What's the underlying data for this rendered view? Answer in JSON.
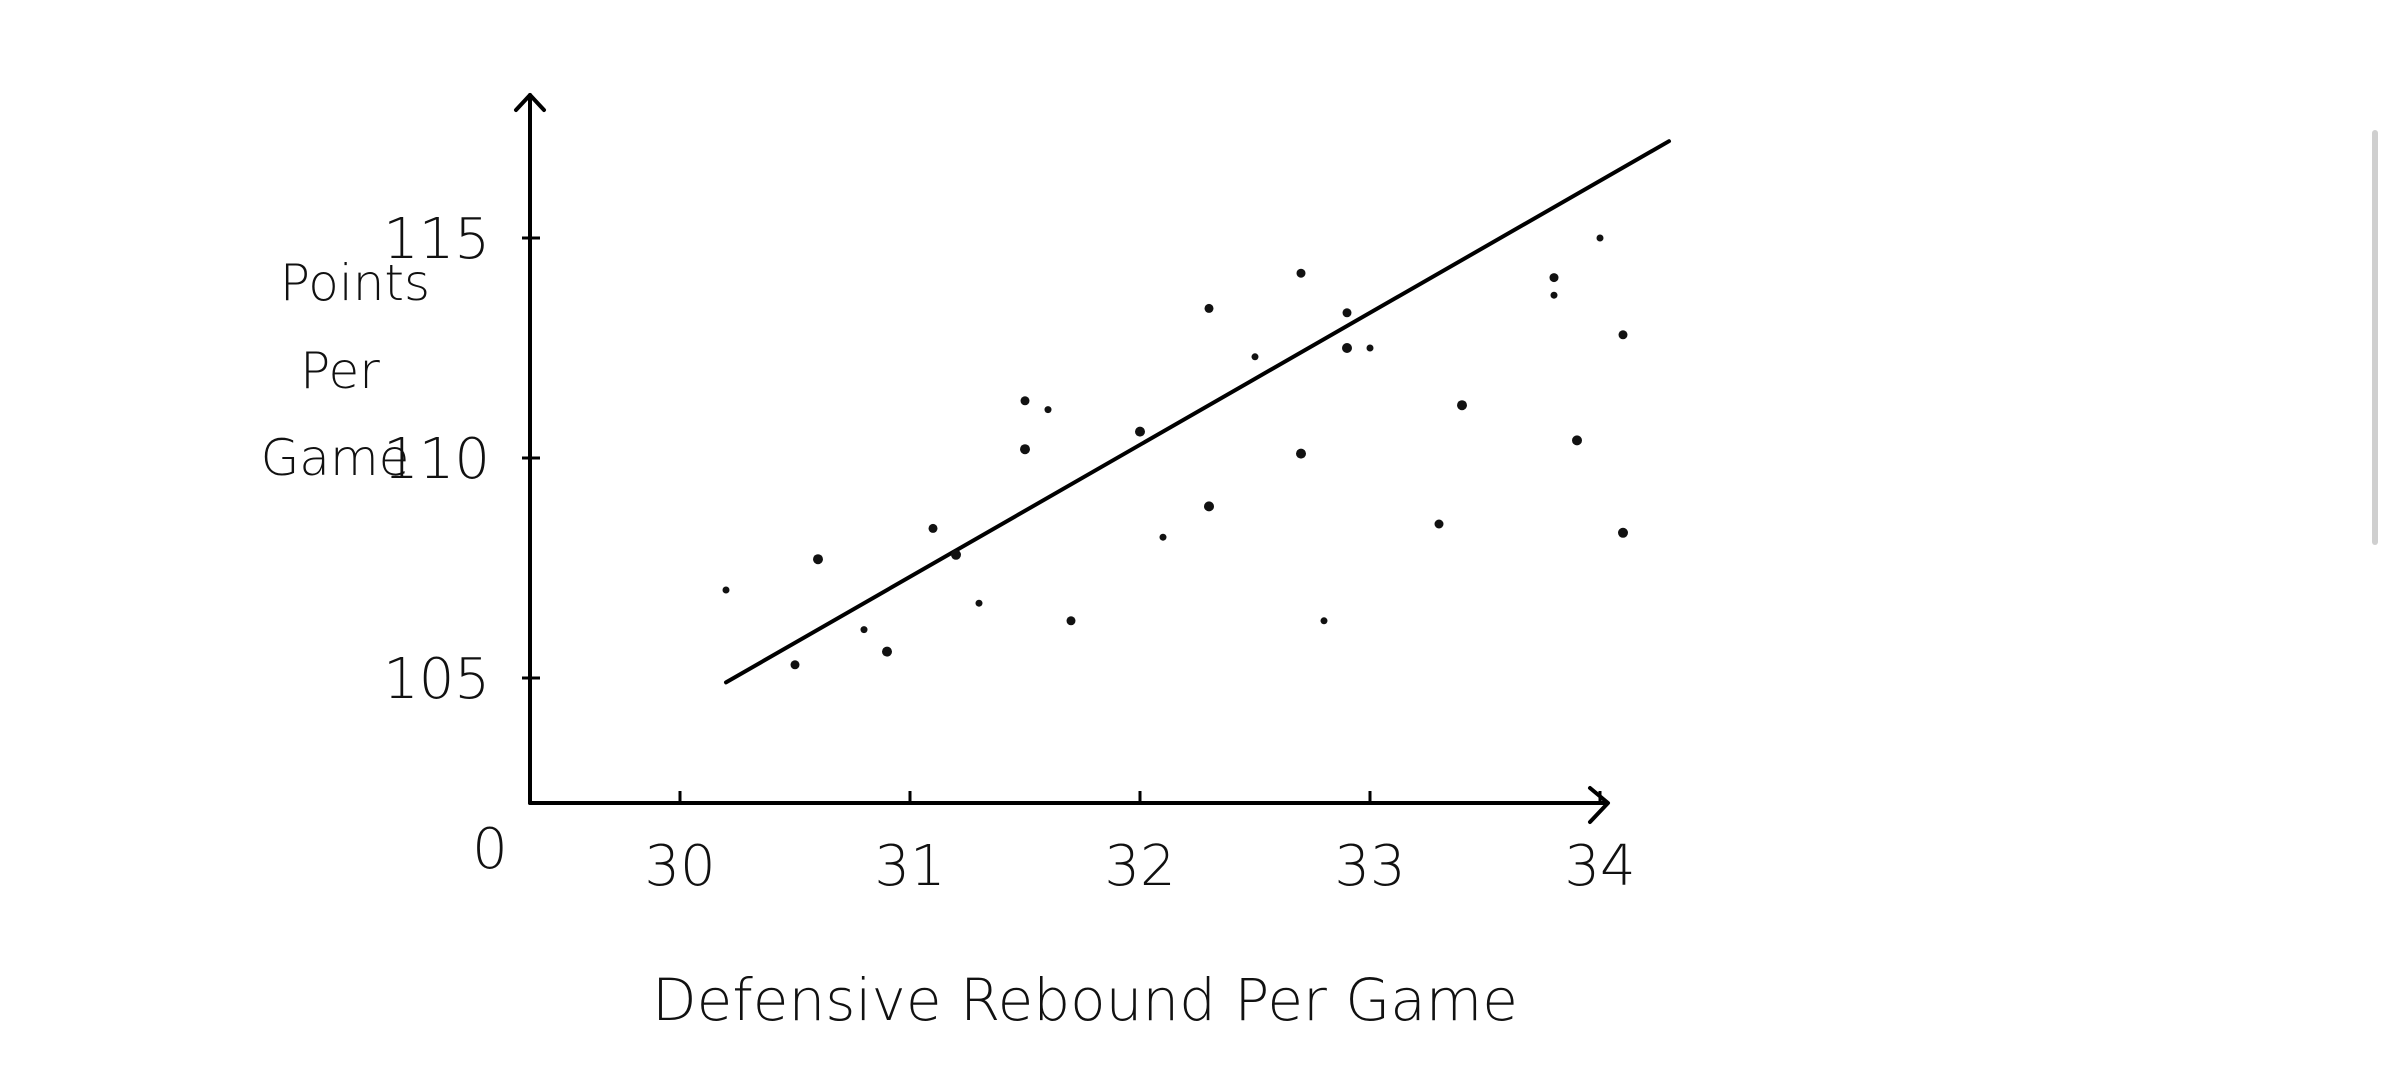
{
  "chart_data": {
    "type": "scatter",
    "title": "",
    "xlabel": "Defensive Rebound Per Game",
    "ylabel_lines": [
      "Points",
      "Per",
      "Game"
    ],
    "xlim": [
      29.4,
      34.6
    ],
    "ylim": [
      102,
      118
    ],
    "x_ticks": [
      30,
      31,
      32,
      33,
      34
    ],
    "x_tick_labels": [
      "30",
      "31",
      "32",
      "33",
      "34"
    ],
    "y_ticks": [
      105,
      110,
      115
    ],
    "y_tick_labels": [
      "105",
      "110",
      "115"
    ],
    "origin_label": "0",
    "grid": false,
    "points": [
      {
        "x": 30.6,
        "y": 107.7
      },
      {
        "x": 30.8,
        "y": 106.1
      },
      {
        "x": 31.1,
        "y": 108.4
      },
      {
        "x": 31.2,
        "y": 107.8
      },
      {
        "x": 31.3,
        "y": 106.7
      },
      {
        "x": 31.5,
        "y": 111.3
      },
      {
        "x": 31.5,
        "y": 110.2
      },
      {
        "x": 31.6,
        "y": 111.1
      },
      {
        "x": 31.7,
        "y": 106.3
      },
      {
        "x": 32.0,
        "y": 110.6
      },
      {
        "x": 32.1,
        "y": 108.2
      },
      {
        "x": 32.3,
        "y": 113.4
      },
      {
        "x": 32.3,
        "y": 108.9
      },
      {
        "x": 32.5,
        "y": 112.3
      },
      {
        "x": 32.7,
        "y": 114.2
      },
      {
        "x": 32.7,
        "y": 110.1
      },
      {
        "x": 32.8,
        "y": 106.3
      },
      {
        "x": 32.9,
        "y": 113.3
      },
      {
        "x": 32.9,
        "y": 112.5
      },
      {
        "x": 33.0,
        "y": 112.5
      },
      {
        "x": 33.3,
        "y": 108.5
      },
      {
        "x": 33.4,
        "y": 111.2
      },
      {
        "x": 33.8,
        "y": 113.7
      },
      {
        "x": 33.8,
        "y": 114.1
      },
      {
        "x": 33.9,
        "y": 110.4
      },
      {
        "x": 34.0,
        "y": 115.0
      },
      {
        "x": 34.1,
        "y": 112.8
      },
      {
        "x": 34.1,
        "y": 108.3
      },
      {
        "x": 30.2,
        "y": 107.0
      },
      {
        "x": 30.5,
        "y": 105.3
      },
      {
        "x": 30.9,
        "y": 105.6
      }
    ],
    "trend_line": {
      "x": [
        30.2,
        34.3
      ],
      "y": [
        104.9,
        117.2
      ]
    }
  }
}
